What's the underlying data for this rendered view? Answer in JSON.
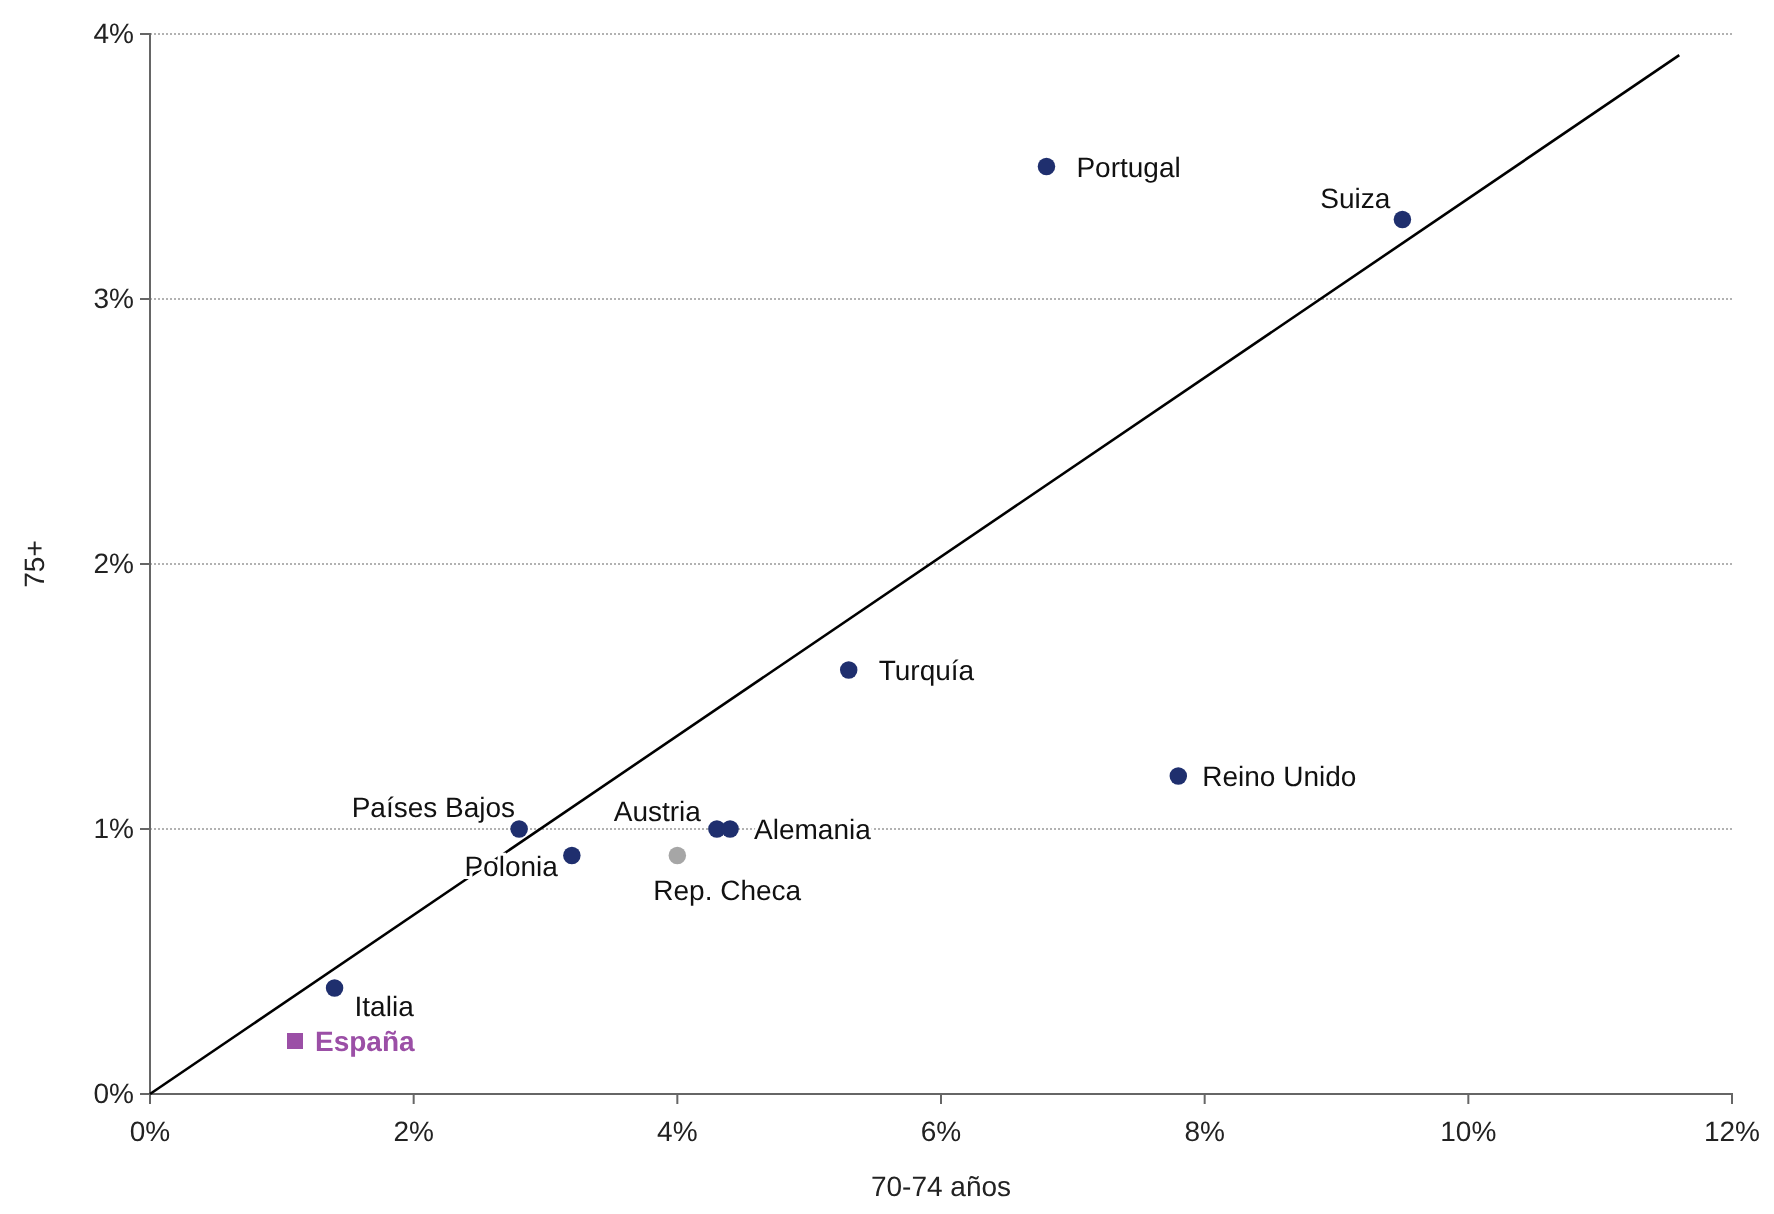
{
  "chart_data": {
    "type": "scatter",
    "xlabel": "70-74 años",
    "ylabel": "75+",
    "xlim": [
      0,
      12
    ],
    "ylim": [
      0,
      4
    ],
    "xticks": [
      {
        "value": 0,
        "label": "0%"
      },
      {
        "value": 2,
        "label": "2%"
      },
      {
        "value": 4,
        "label": "4%"
      },
      {
        "value": 6,
        "label": "6%"
      },
      {
        "value": 8,
        "label": "8%"
      },
      {
        "value": 10,
        "label": "10%"
      },
      {
        "value": 12,
        "label": "12%"
      }
    ],
    "yticks": [
      {
        "value": 0,
        "label": "0%"
      },
      {
        "value": 1,
        "label": "1%"
      },
      {
        "value": 2,
        "label": "2%"
      },
      {
        "value": 3,
        "label": "3%"
      },
      {
        "value": 4,
        "label": "4%"
      }
    ],
    "grid": "y",
    "marker": "circle",
    "series": [
      {
        "name": "Portugal",
        "color": "#1f2f6e",
        "x": [
          6.8
        ],
        "values": [
          3.5
        ]
      },
      {
        "name": "Suiza",
        "color": "#1f2f6e",
        "x": [
          9.5
        ],
        "values": [
          3.3
        ]
      },
      {
        "name": "Turquía",
        "color": "#1f2f6e",
        "x": [
          5.3
        ],
        "values": [
          1.6
        ]
      },
      {
        "name": "Reino Unido",
        "color": "#1f2f6e",
        "x": [
          7.8
        ],
        "values": [
          1.2
        ]
      },
      {
        "name": "Países Bajos",
        "color": "#1f2f6e",
        "x": [
          2.8
        ],
        "values": [
          1.0
        ]
      },
      {
        "name": "Austria",
        "color": "#1f2f6e",
        "x": [
          4.3
        ],
        "values": [
          1.0
        ]
      },
      {
        "name": "Alemania",
        "color": "#1f2f6e",
        "x": [
          4.4
        ],
        "values": [
          1.0
        ]
      },
      {
        "name": "Polonia",
        "color": "#1f2f6e",
        "x": [
          3.2
        ],
        "values": [
          0.9
        ]
      },
      {
        "name": "Rep. Checa",
        "color": "#a6a6a6",
        "x": [
          4.0
        ],
        "values": [
          0.9
        ]
      },
      {
        "name": "Italia",
        "color": "#1f2f6e",
        "x": [
          1.4
        ],
        "values": [
          0.4
        ]
      },
      {
        "name": "España",
        "color": "#9b4fa6",
        "x": [
          1.1
        ],
        "values": [
          0.2
        ],
        "marker": "square"
      },
      {
        "type": "line",
        "color": "#000000",
        "x": [
          0,
          11.6
        ],
        "values": [
          0,
          3.92
        ],
        "marker": "none"
      }
    ]
  }
}
